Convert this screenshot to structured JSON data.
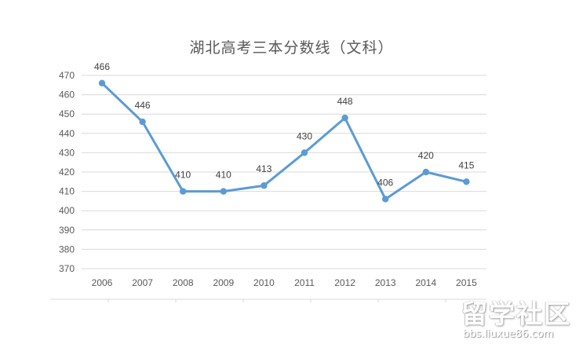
{
  "chart_data": {
    "type": "line",
    "title": "湖北高考三本分数线（文科）",
    "xlabel": "",
    "ylabel": "",
    "categories": [
      "2006",
      "2007",
      "2008",
      "2009",
      "2010",
      "2011",
      "2012",
      "2013",
      "2014",
      "2015"
    ],
    "series": [
      {
        "name": "分数线",
        "values": [
          466,
          446,
          410,
          410,
          413,
          430,
          448,
          406,
          420,
          415
        ],
        "color": "#5b9bd5"
      }
    ],
    "data_labels": [
      "466",
      "446",
      "410",
      "410",
      "413",
      "430",
      "448",
      "406",
      "420",
      "415"
    ],
    "yticks": [
      "470",
      "460",
      "450",
      "440",
      "430",
      "420",
      "410",
      "400",
      "390",
      "380",
      "370"
    ],
    "ylim": [
      370,
      470
    ],
    "grid": true,
    "legend": "none"
  },
  "watermark": {
    "main": "留学社区",
    "sub": "bbs.liuxue86.com"
  }
}
